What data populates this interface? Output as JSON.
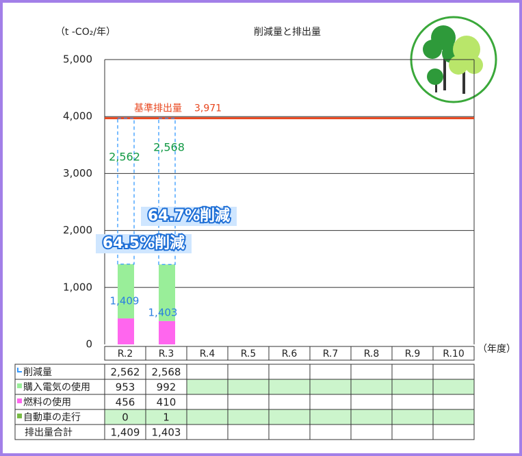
{
  "chart_data": {
    "type": "stacked_bar",
    "title": "削減量と排出量",
    "y_axis_label": "（t -CO₂/年）",
    "x_axis_label": "（年度）",
    "categories": [
      "R.2",
      "R.3",
      "R.4",
      "R.5",
      "R.6",
      "R.7",
      "R.8",
      "R.9",
      "R.10"
    ],
    "series": [
      {
        "name": "削減量",
        "color": "#3399ff",
        "values": [
          2562,
          2568,
          null,
          null,
          null,
          null,
          null,
          null,
          null
        ],
        "value_labels": [
          "2,562",
          "2,568",
          null,
          null,
          null,
          null,
          null,
          null,
          null
        ]
      },
      {
        "name": "購入電気の使用",
        "color": "#99ee99",
        "values": [
          953,
          992,
          null,
          null,
          null,
          null,
          null,
          null,
          null
        ]
      },
      {
        "name": "燃料の使用",
        "color": "#ff66ee",
        "values": [
          456,
          410,
          null,
          null,
          null,
          null,
          null,
          null,
          null
        ]
      },
      {
        "name": "自動車の走行",
        "color": "#77bb44",
        "values": [
          0,
          1,
          null,
          null,
          null,
          null,
          null,
          null,
          null
        ]
      }
    ],
    "totals": {
      "name": "排出量合計",
      "values": [
        1409,
        1403,
        null,
        null,
        null,
        null,
        null,
        null,
        null
      ],
      "value_labels": [
        "1,409",
        "1,403",
        null,
        null,
        null,
        null,
        null,
        null,
        null
      ]
    },
    "baseline": {
      "label": "基準排出量",
      "value": 3971,
      "value_label": "3,971",
      "color": "#e8461e"
    },
    "annotations": [
      "64.5%削減",
      "64.7%削減"
    ],
    "ylim": [
      0,
      5000
    ],
    "yticks": [
      0,
      {
        "value": 1000,
        "label": "1,000"
      },
      {
        "value": 2000,
        "label": "2,000"
      },
      {
        "value": 3000,
        "label": "3,000"
      },
      {
        "value": 4000,
        "label": "4,000"
      },
      {
        "value": 5000,
        "label": "5,000"
      }
    ],
    "grid": true
  }
}
